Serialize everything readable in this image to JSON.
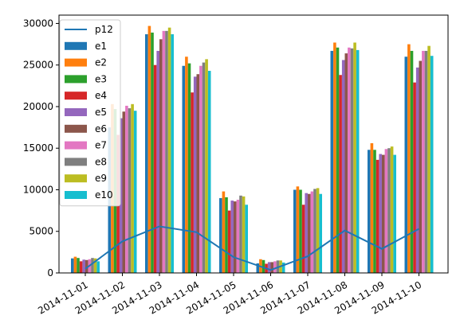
{
  "chart_data": {
    "type": "bar",
    "title": "",
    "xlabel": "",
    "ylabel": "",
    "categories": [
      "2014-11-01",
      "2014-11-02",
      "2014-11-03",
      "2014-11-04",
      "2014-11-05",
      "2014-11-06",
      "2014-11-07",
      "2014-11-08",
      "2014-11-09",
      "2014-11-10"
    ],
    "ylim": [
      0,
      31000
    ],
    "yticks": [
      0,
      5000,
      10000,
      15000,
      20000,
      25000,
      30000
    ],
    "grid": false,
    "legend_position": "top-left",
    "series": [
      {
        "name": "e1",
        "color": "#1f77b4",
        "values": [
          1750,
          17500,
          28700,
          24900,
          9000,
          1150,
          10000,
          26700,
          14800,
          26000
        ]
      },
      {
        "name": "e2",
        "color": "#ff7f0e",
        "values": [
          1950,
          20300,
          29700,
          26000,
          9800,
          1650,
          10400,
          27700,
          15600,
          27500
        ]
      },
      {
        "name": "e3",
        "color": "#2ca02c",
        "values": [
          1800,
          19700,
          28900,
          25200,
          9100,
          1550,
          10000,
          27100,
          14800,
          26700
        ]
      },
      {
        "name": "e4",
        "color": "#d62728",
        "values": [
          1400,
          16600,
          25000,
          21700,
          7500,
          1100,
          8200,
          23800,
          13600,
          22900
        ]
      },
      {
        "name": "e5",
        "color": "#9467bd",
        "values": [
          1600,
          18600,
          26700,
          23600,
          8700,
          1300,
          9600,
          25600,
          14300,
          24700
        ]
      },
      {
        "name": "e6",
        "color": "#8c564b",
        "values": [
          1550,
          19400,
          28100,
          23900,
          8600,
          1300,
          9500,
          26400,
          14200,
          25500
        ]
      },
      {
        "name": "e7",
        "color": "#e377c2",
        "values": [
          1650,
          20100,
          29100,
          24900,
          8800,
          1400,
          9800,
          27100,
          14900,
          26700
        ]
      },
      {
        "name": "e8",
        "color": "#7f7f7f",
        "values": [
          1800,
          19800,
          29100,
          25300,
          9300,
          1500,
          10100,
          27000,
          15000,
          26700
        ]
      },
      {
        "name": "e9",
        "color": "#bcbd22",
        "values": [
          1750,
          20300,
          29500,
          25700,
          9200,
          1500,
          10200,
          27700,
          15200,
          27300
        ]
      },
      {
        "name": "e10",
        "color": "#17becf",
        "values": [
          1400,
          19500,
          28700,
          24300,
          8200,
          1250,
          9500,
          26800,
          14200,
          26100
        ]
      }
    ],
    "line_series": {
      "name": "p12",
      "color": "#1f77b4",
      "values": [
        500,
        3800,
        5600,
        4900,
        1900,
        350,
        2000,
        5100,
        2900,
        5300
      ]
    }
  }
}
